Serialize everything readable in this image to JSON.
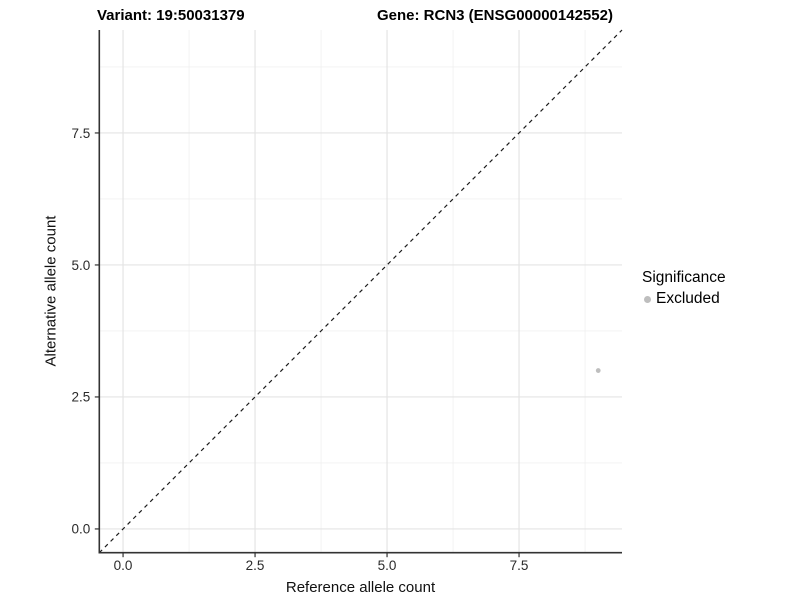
{
  "chart_data": {
    "type": "scatter",
    "title_left": "Variant: 19:50031379",
    "title_right": "Gene: RCN3 (ENSG00000142552)",
    "xlabel": "Reference allele count",
    "ylabel": "Alternative allele count",
    "xlim": [
      -0.45,
      9.45
    ],
    "ylim": [
      -0.45,
      9.45
    ],
    "x_major_ticks": [
      0,
      2.5,
      5,
      7.5
    ],
    "x_tick_labels": [
      "0.0",
      "2.5",
      "5.0",
      "7.5"
    ],
    "y_major_ticks": [
      0,
      2.5,
      5,
      7.5
    ],
    "y_tick_labels": [
      "0.0",
      "2.5",
      "5.0",
      "7.5"
    ],
    "x_minor_ticks": [
      1.25,
      3.75,
      6.25,
      8.75
    ],
    "y_minor_ticks": [
      1.25,
      3.75,
      6.25,
      8.75
    ],
    "grid": "major+minor",
    "identity_line": {
      "style": "dashed",
      "from": -0.45,
      "to": 9.45
    },
    "series": [
      {
        "name": "Excluded",
        "color": "#bebebe",
        "points": [
          [
            9,
            3
          ]
        ]
      }
    ],
    "legend": {
      "title": "Significance",
      "position": "right",
      "entries": [
        {
          "label": "Excluded",
          "color": "#bebebe"
        }
      ]
    }
  },
  "colors": {
    "background": "#ffffff",
    "grid_major": "#e4e4e4",
    "grid_minor": "#f0f0f0",
    "axis_line": "#333333",
    "tick_mark": "#333333",
    "tick_label": "#2b2b2b",
    "title_text": "#000000",
    "dashed_line": "#1c1c1c",
    "point": "#bebebe"
  }
}
